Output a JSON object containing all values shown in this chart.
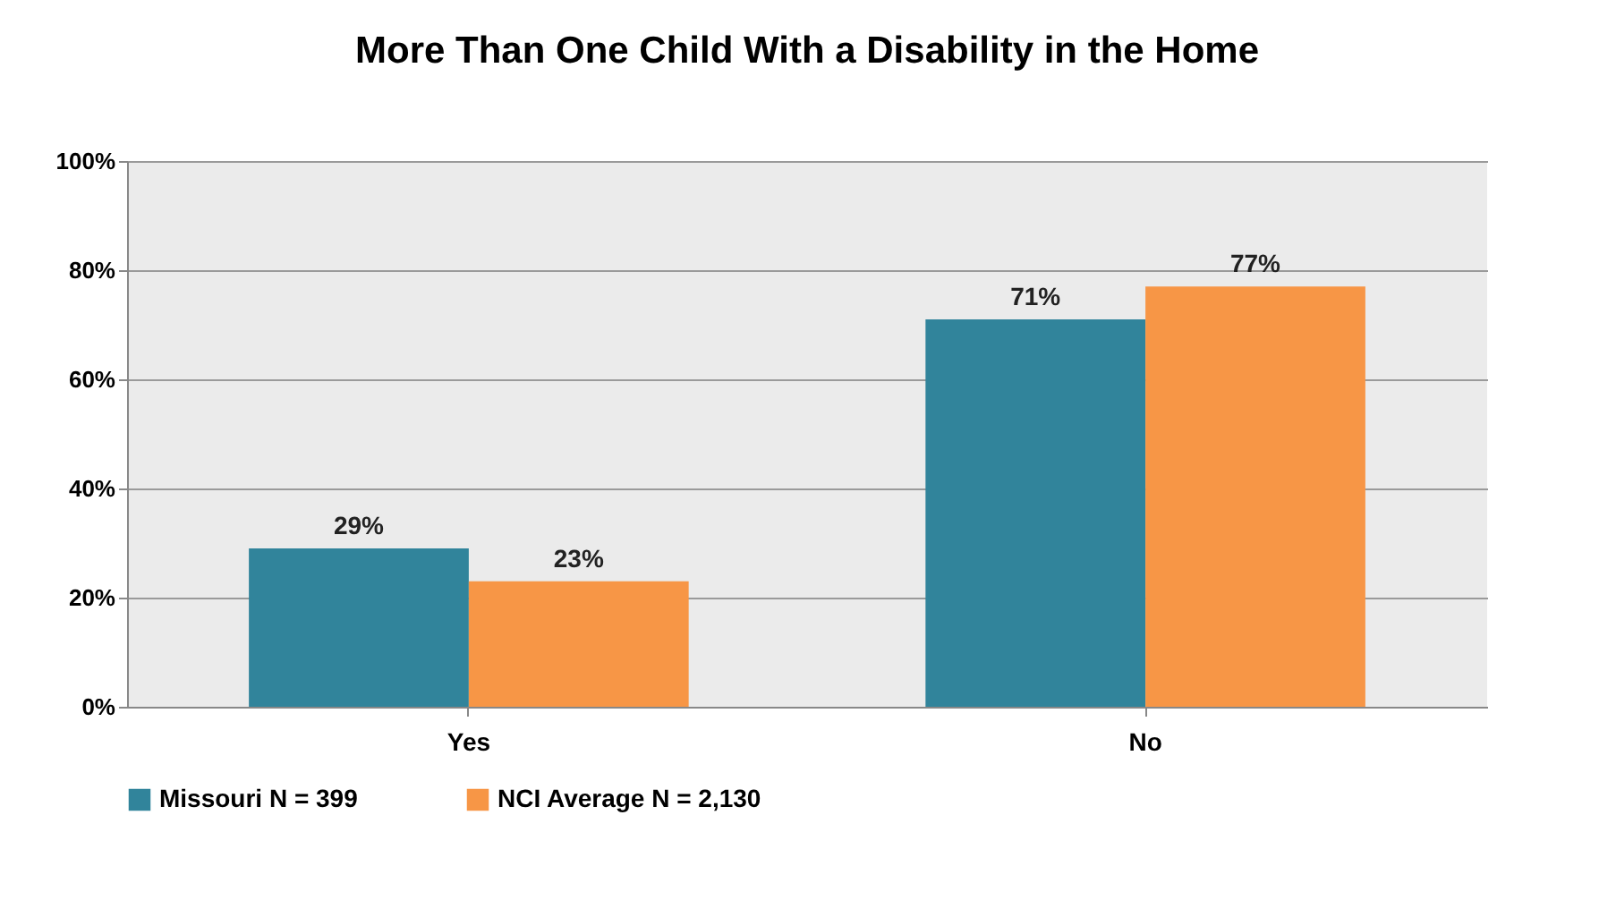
{
  "chart_data": {
    "type": "bar",
    "title": "More Than One Child With a Disability in the Home",
    "categories": [
      "Yes",
      "No"
    ],
    "series": [
      {
        "name": "Missouri N = 399",
        "color": "#31849b",
        "values": [
          29,
          71
        ],
        "value_labels": [
          "29%",
          "71%"
        ]
      },
      {
        "name": "NCI Average N = 2,130",
        "color": "#f79646",
        "values": [
          23,
          77
        ],
        "value_labels": [
          "23%",
          "77%"
        ]
      }
    ],
    "ylim": [
      0,
      100
    ],
    "yticks": [
      {
        "value": 0,
        "label": "0%"
      },
      {
        "value": 20,
        "label": "20%"
      },
      {
        "value": 40,
        "label": "40%"
      },
      {
        "value": 60,
        "label": "60%"
      },
      {
        "value": 80,
        "label": "80%"
      },
      {
        "value": 100,
        "label": "100%"
      }
    ],
    "grid": "y",
    "legend": "bottom"
  }
}
